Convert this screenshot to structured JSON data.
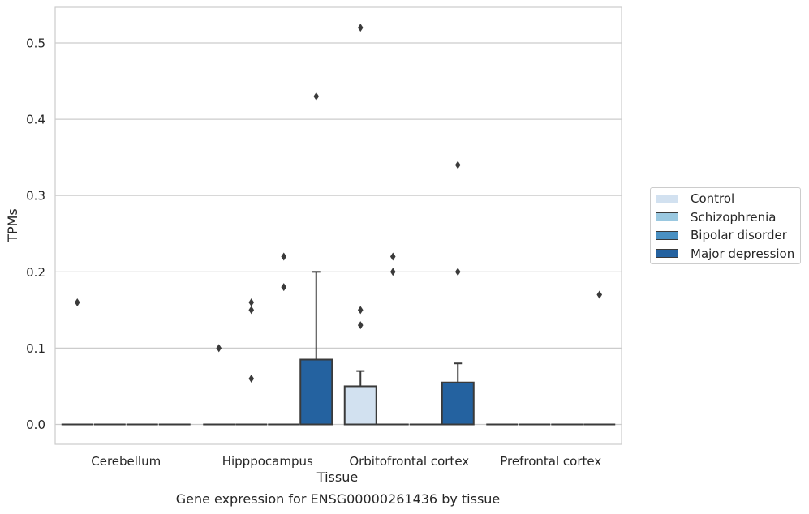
{
  "chart_data": {
    "type": "box",
    "title": "",
    "caption": "Gene expression for ENSG00000261436 by tissue",
    "xlabel": "Tissue",
    "ylabel": "TPMs",
    "ylim": [
      -0.025,
      0.55
    ],
    "yticks": [
      0.0,
      0.1,
      0.2,
      0.3,
      0.4,
      0.5
    ],
    "ytick_labels": [
      "0.0",
      "0.1",
      "0.2",
      "0.3",
      "0.4",
      "0.5"
    ],
    "categories": [
      "Cerebellum",
      "Hipppocampus",
      "Orbitofrontal cortex",
      "Prefrontal cortex"
    ],
    "grid": "horizontal",
    "legend_position": "right",
    "series": [
      {
        "name": "Control",
        "color": "#d2e1f0",
        "boxes": [
          {
            "q1": 0,
            "median": 0,
            "q3": 0,
            "whisker_low": 0,
            "whisker_high": 0,
            "outliers": [
              0.16
            ]
          },
          {
            "q1": 0,
            "median": 0,
            "q3": 0,
            "whisker_low": 0,
            "whisker_high": 0,
            "outliers": [
              0.1
            ]
          },
          {
            "q1": 0,
            "median": 0,
            "q3": 0.05,
            "whisker_low": 0,
            "whisker_high": 0.07,
            "outliers": [
              0.52,
              0.15,
              0.13
            ]
          },
          {
            "q1": 0,
            "median": 0,
            "q3": 0,
            "whisker_low": 0,
            "whisker_high": 0,
            "outliers": []
          }
        ]
      },
      {
        "name": "Schizophrenia",
        "color": "#9ac8e0",
        "boxes": [
          {
            "q1": 0,
            "median": 0,
            "q3": 0,
            "whisker_low": 0,
            "whisker_high": 0,
            "outliers": []
          },
          {
            "q1": 0,
            "median": 0,
            "q3": 0,
            "whisker_low": 0,
            "whisker_high": 0,
            "outliers": [
              0.16,
              0.15,
              0.06
            ]
          },
          {
            "q1": 0,
            "median": 0,
            "q3": 0,
            "whisker_low": 0,
            "whisker_high": 0,
            "outliers": [
              0.22,
              0.2
            ]
          },
          {
            "q1": 0,
            "median": 0,
            "q3": 0,
            "whisker_low": 0,
            "whisker_high": 0,
            "outliers": []
          }
        ]
      },
      {
        "name": "Bipolar disorder",
        "color": "#4a90c2",
        "boxes": [
          {
            "q1": 0,
            "median": 0,
            "q3": 0,
            "whisker_low": 0,
            "whisker_high": 0,
            "outliers": []
          },
          {
            "q1": 0,
            "median": 0,
            "q3": 0,
            "whisker_low": 0,
            "whisker_high": 0,
            "outliers": [
              0.22,
              0.18
            ]
          },
          {
            "q1": 0,
            "median": 0,
            "q3": 0,
            "whisker_low": 0,
            "whisker_high": 0,
            "outliers": []
          },
          {
            "q1": 0,
            "median": 0,
            "q3": 0,
            "whisker_low": 0,
            "whisker_high": 0,
            "outliers": []
          }
        ]
      },
      {
        "name": "Major depression",
        "color": "#2462a0",
        "boxes": [
          {
            "q1": 0,
            "median": 0,
            "q3": 0,
            "whisker_low": 0,
            "whisker_high": 0,
            "outliers": []
          },
          {
            "q1": 0,
            "median": 0,
            "q3": 0.085,
            "whisker_low": 0,
            "whisker_high": 0.2,
            "outliers": [
              0.43
            ]
          },
          {
            "q1": 0,
            "median": 0,
            "q3": 0.055,
            "whisker_low": 0,
            "whisker_high": 0.08,
            "outliers": [
              0.34,
              0.2
            ]
          },
          {
            "q1": 0,
            "median": 0,
            "q3": 0,
            "whisker_low": 0,
            "whisker_high": 0,
            "outliers": [
              0.17
            ]
          }
        ]
      }
    ]
  }
}
